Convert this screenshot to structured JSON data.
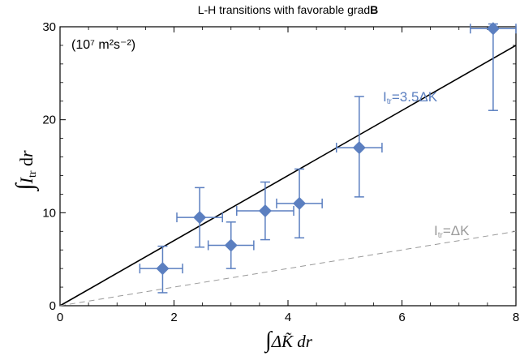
{
  "chart_data": {
    "type": "scatter",
    "title": "L-H transitions with favorable grad",
    "title_bold": "B",
    "units": "(10⁷ m²s⁻²)",
    "xlabel": "∫ΔK̃dr",
    "ylabel": "∫Itrdr",
    "xlim": [
      0,
      8
    ],
    "ylim": [
      0,
      30
    ],
    "x_ticks": [
      0,
      2,
      4,
      6,
      8
    ],
    "y_ticks": [
      0,
      10,
      20,
      30
    ],
    "grid": false,
    "points": [
      {
        "x": 1.8,
        "y": 4.0,
        "xerr": [
          0.4,
          0.35
        ],
        "yerr": [
          2.6,
          2.4
        ]
      },
      {
        "x": 2.45,
        "y": 9.5,
        "xerr": [
          0.4,
          0.4
        ],
        "yerr": [
          3.2,
          3.2
        ]
      },
      {
        "x": 3.0,
        "y": 6.5,
        "xerr": [
          0.4,
          0.4
        ],
        "yerr": [
          2.5,
          2.5
        ]
      },
      {
        "x": 3.6,
        "y": 10.2,
        "xerr": [
          0.5,
          0.5
        ],
        "yerr": [
          3.1,
          3.1
        ]
      },
      {
        "x": 4.2,
        "y": 11.0,
        "xerr": [
          0.4,
          0.4
        ],
        "yerr": [
          3.7,
          3.7
        ]
      },
      {
        "x": 5.25,
        "y": 17.0,
        "xerr": [
          0.4,
          0.4
        ],
        "yerr": [
          5.3,
          5.5
        ]
      },
      {
        "x": 7.6,
        "y": 29.8,
        "xerr": [
          0.4,
          0.4
        ],
        "yerr": [
          8.8,
          0.5
        ]
      }
    ],
    "lines": [
      {
        "label_main": "I",
        "label_sub": "tr",
        "label_rest": "=3.5ΔK",
        "slope": 3.5,
        "color": "#000000",
        "style": "solid"
      },
      {
        "label_main": "I",
        "label_sub": "tr",
        "label_rest": "=ΔK",
        "slope": 1.0,
        "color": "#9a9a9a",
        "style": "dashed"
      }
    ],
    "marker_color": "#5b7fc0"
  }
}
